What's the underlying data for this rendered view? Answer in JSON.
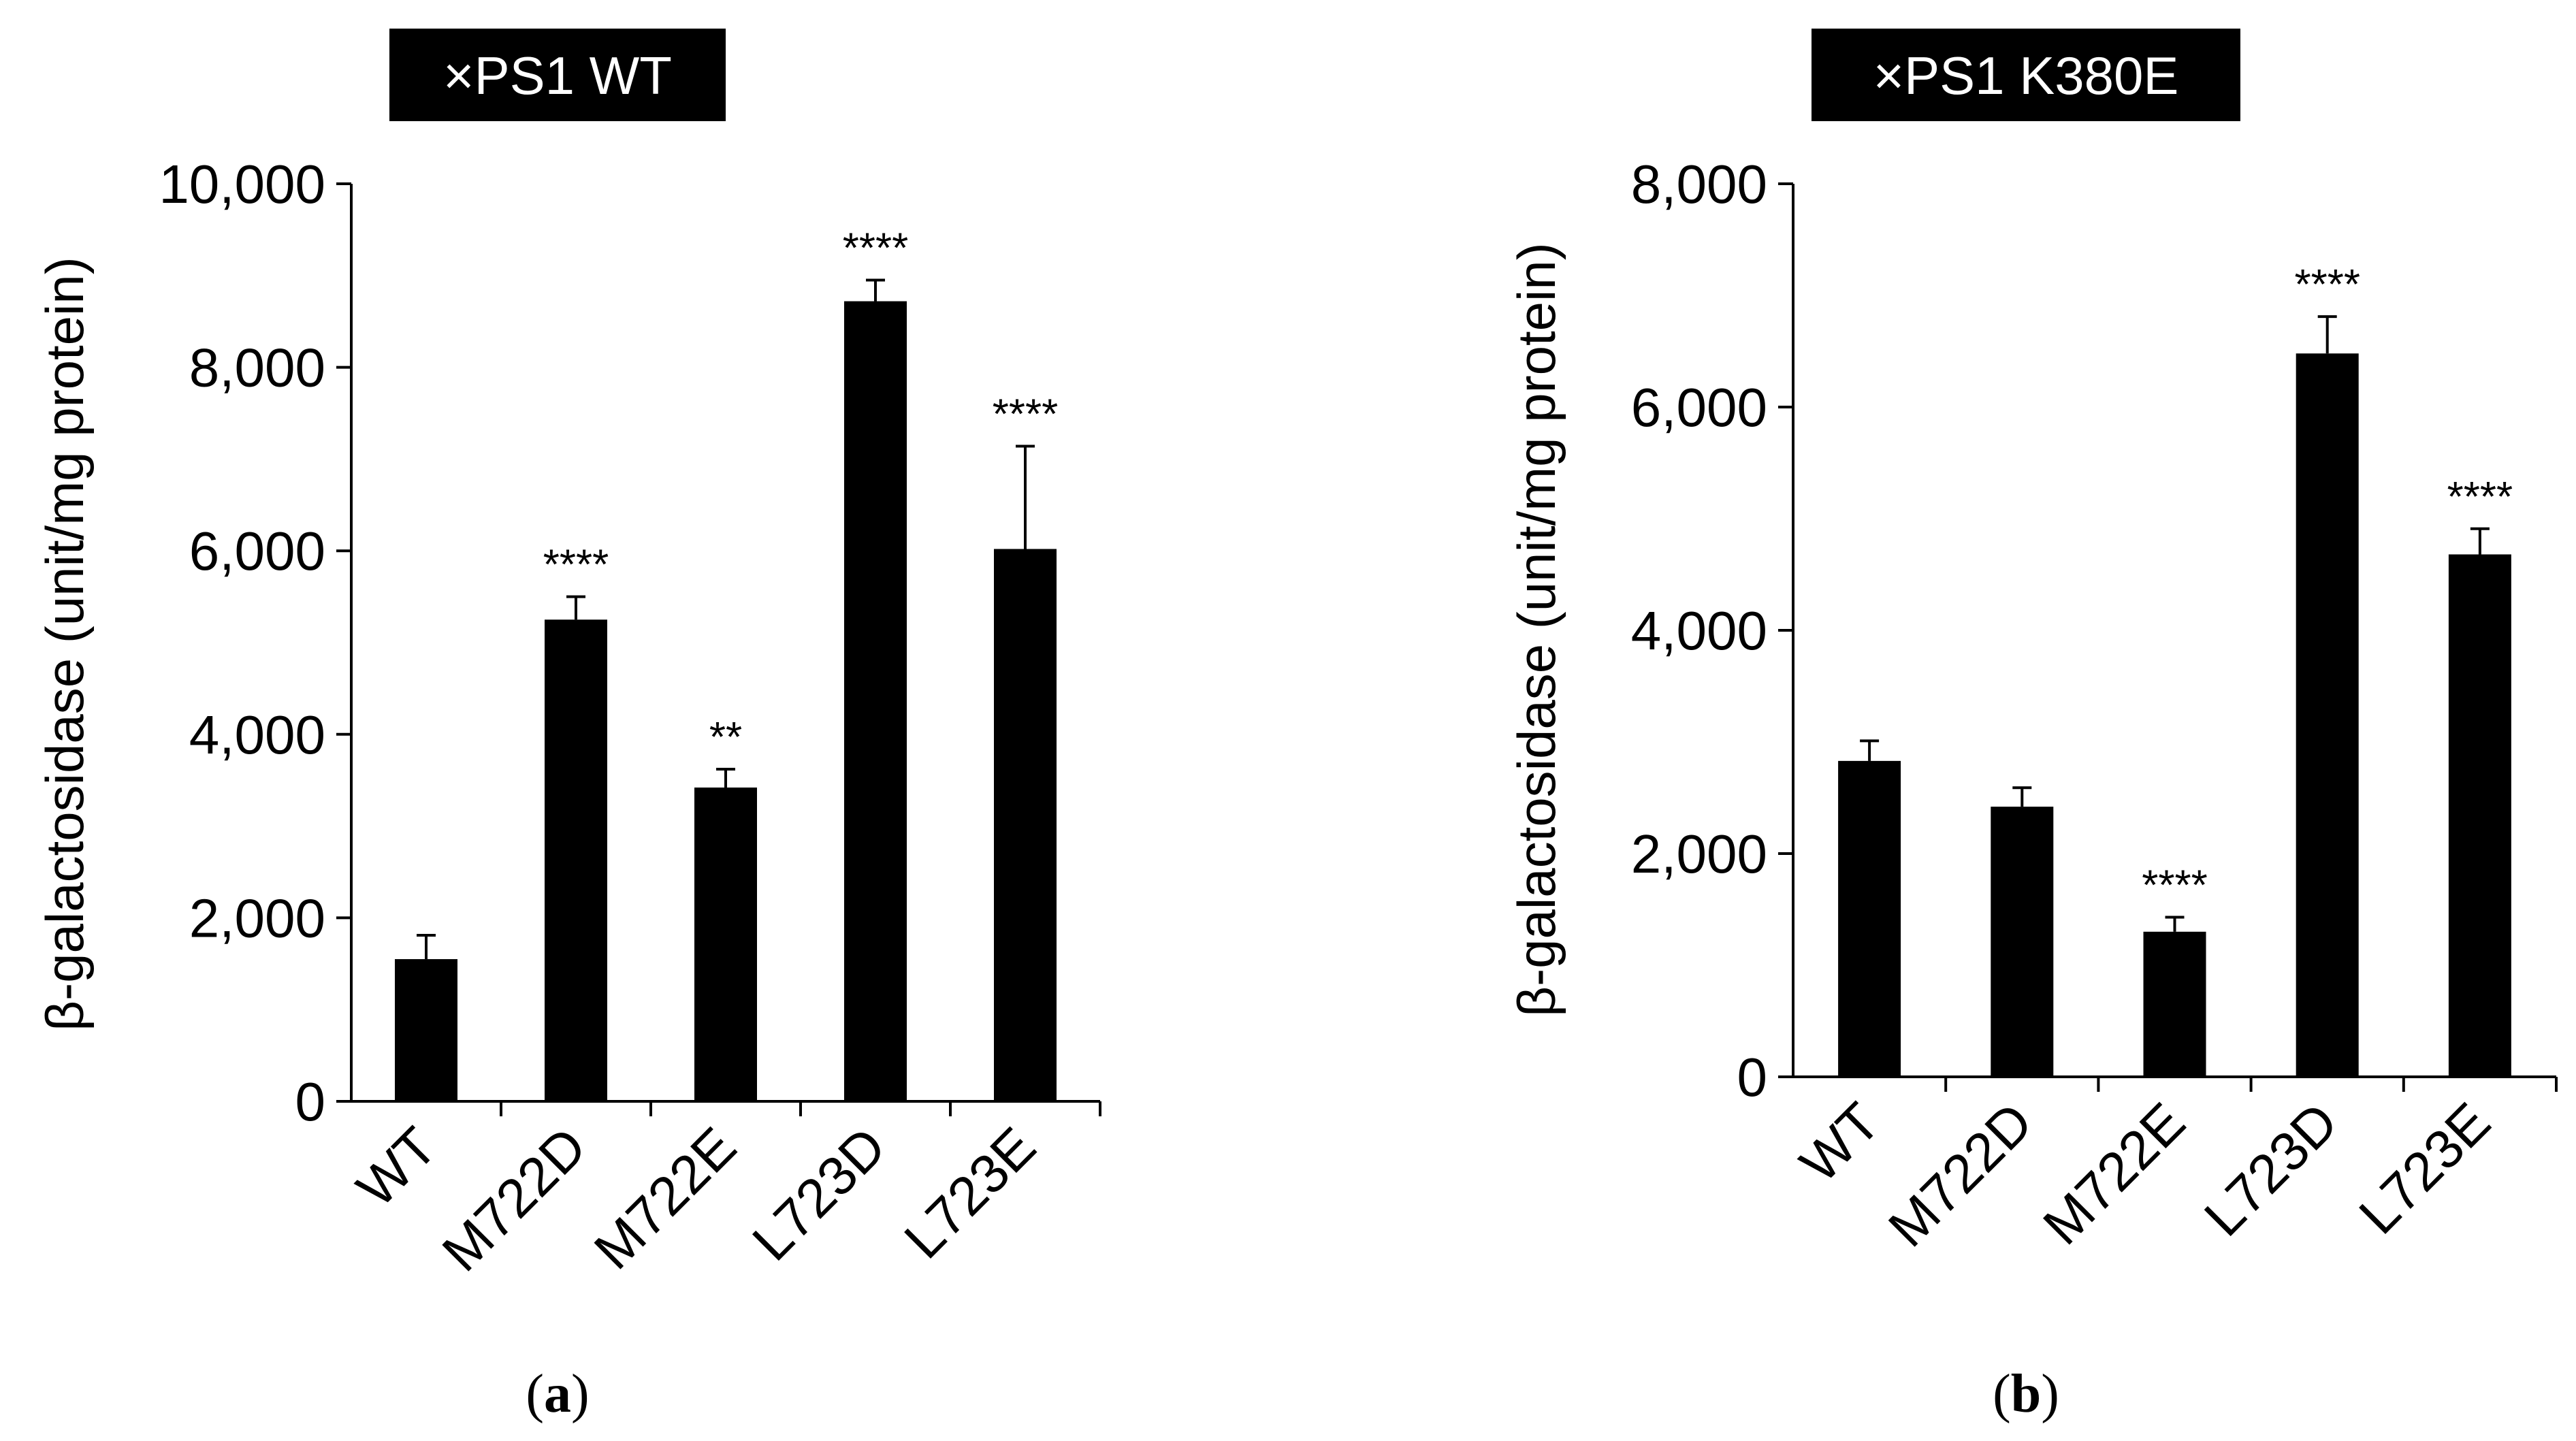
{
  "colors": {
    "bar": "#000000",
    "axis": "#000000",
    "title_bg": "#000000",
    "title_text": "#ffffff"
  },
  "chart_data": [
    {
      "type": "bar",
      "panel": "a",
      "caption": {
        "open": "(",
        "letter": "a",
        "close": ")"
      },
      "title": "×PS1 WT",
      "xlabel": "",
      "ylabel": "β-galactosidase (unit/mg protein)",
      "ylim": [
        0,
        10000
      ],
      "yticks": [
        0,
        2000,
        4000,
        6000,
        8000,
        10000
      ],
      "ytick_labels": [
        "0",
        "2,000",
        "4,000",
        "6,000",
        "8,000",
        "10,000"
      ],
      "categories": [
        "WT",
        "M722D",
        "M722E",
        "L723D",
        "L723E"
      ],
      "values": [
        1550,
        5250,
        3420,
        8720,
        6020
      ],
      "errors": [
        260,
        250,
        200,
        230,
        1120
      ],
      "significance": [
        "",
        "****",
        "**",
        "****",
        "****"
      ]
    },
    {
      "type": "bar",
      "panel": "b",
      "caption": {
        "open": "(",
        "letter": "b",
        "close": ")"
      },
      "title": "×PS1 K380E",
      "xlabel": "",
      "ylabel": "β-galactosidase (unit/mg protein)",
      "ylim": [
        0,
        8000
      ],
      "yticks": [
        0,
        2000,
        4000,
        6000,
        8000
      ],
      "ytick_labels": [
        "0",
        "2,000",
        "4,000",
        "6,000",
        "8,000"
      ],
      "categories": [
        "WT",
        "M722D",
        "M722E",
        "L723D",
        "L723E"
      ],
      "values": [
        2830,
        2420,
        1300,
        6480,
        4680
      ],
      "errors": [
        180,
        170,
        130,
        330,
        230
      ],
      "significance": [
        "",
        "",
        "****",
        "****",
        "****"
      ]
    }
  ]
}
